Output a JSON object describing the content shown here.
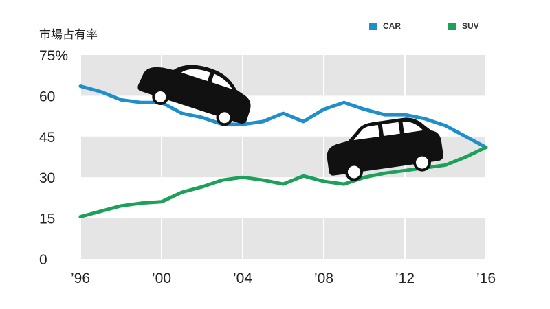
{
  "chart_data": {
    "type": "line",
    "ylabel": "市場占有率",
    "ylim": [
      0,
      75
    ],
    "yticks": [
      "0",
      "15",
      "30",
      "45",
      "60",
      "75%"
    ],
    "xticks": [
      "’96",
      "’00",
      "’04",
      "’08",
      "’12",
      "’16"
    ],
    "xlim": [
      1996,
      2016
    ],
    "legend_position": "top-right",
    "series": [
      {
        "name": "CAR",
        "color": "#1e8fcb",
        "x": [
          1996,
          1997,
          1998,
          1999,
          2000,
          2001,
          2002,
          2003,
          2004,
          2005,
          2006,
          2007,
          2008,
          2009,
          2010,
          2011,
          2012,
          2013,
          2014,
          2015,
          2016
        ],
        "values": [
          63.5,
          61.5,
          58.5,
          57.5,
          57.5,
          53.5,
          52,
          49.5,
          49.5,
          50.5,
          53.5,
          50.5,
          55,
          57.5,
          55,
          53,
          53,
          51.5,
          49,
          45,
          41
        ]
      },
      {
        "name": "SUV",
        "color": "#1da05a",
        "x": [
          1996,
          1997,
          1998,
          1999,
          2000,
          2001,
          2002,
          2003,
          2004,
          2005,
          2006,
          2007,
          2008,
          2009,
          2010,
          2011,
          2012,
          2013,
          2014,
          2015,
          2016
        ],
        "values": [
          15.5,
          17.5,
          19.5,
          20.5,
          21,
          24.5,
          26.5,
          29,
          30,
          29,
          27.5,
          30.5,
          28.5,
          27.5,
          30,
          31.5,
          32.5,
          33.5,
          34.5,
          37.5,
          41
        ]
      }
    ]
  }
}
